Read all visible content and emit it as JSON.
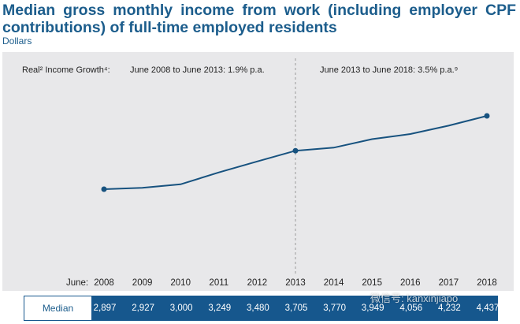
{
  "title": "Median gross monthly income from work (including employer CPF contributions) of full-time employed residents",
  "unit_label": "Dollars",
  "annotations": {
    "prefix": "Real² Income Growth⁴:",
    "period1": "June 2008 to June 2013: 1.9% p.a.",
    "period2": "June 2013 to June 2018: 3.5% p.a.⁹"
  },
  "x_axis_prefix": "June:",
  "table_row_label": "Median",
  "watermark": "微信号: kanxinjiapo",
  "colors": {
    "title": "#1c5d8c",
    "line": "#17527f",
    "panel": "#e8e8ea",
    "table": "#16578d"
  },
  "chart_data": {
    "type": "line",
    "categories": [
      "2008",
      "2009",
      "2010",
      "2011",
      "2012",
      "2013",
      "2014",
      "2015",
      "2016",
      "2017",
      "2018"
    ],
    "series": [
      {
        "name": "Median",
        "values": [
          2897,
          2927,
          3000,
          3249,
          3480,
          3705,
          3770,
          3949,
          4056,
          4232,
          4437
        ]
      }
    ],
    "value_labels": [
      "2,897",
      "2,927",
      "3,000",
      "3,249",
      "3,480",
      "3,705",
      "3,770",
      "3,949",
      "4,056",
      "4,232",
      "4,437"
    ],
    "markers_on": [
      "2008",
      "2013",
      "2018"
    ],
    "divider_at": "2013",
    "grid": false,
    "legend": "none"
  }
}
